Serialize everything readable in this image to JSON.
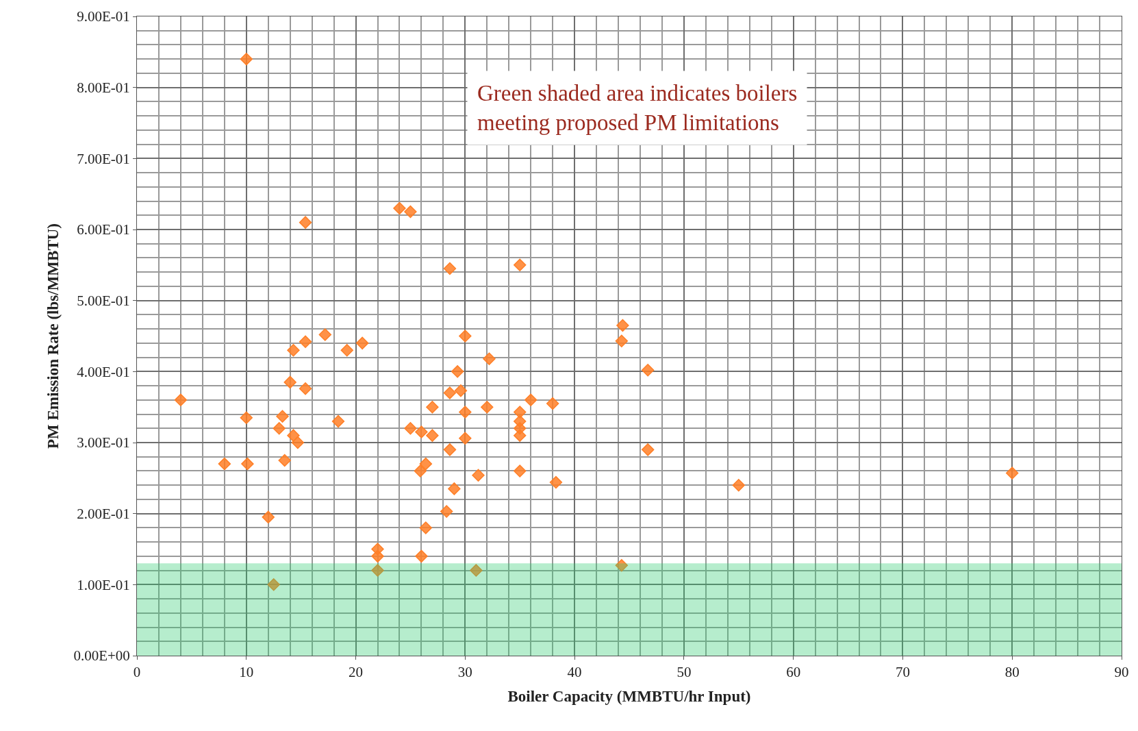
{
  "chart_data": {
    "type": "scatter",
    "xlabel": "Boiler Capacity (MMBTU/hr Input)",
    "ylabel": "PM Emission Rate (lbs/MMBTU)",
    "annotations": [
      "Green shaded area indicates boilers meeting proposed PM limitations"
    ],
    "series": [
      {
        "color": "#ff7f27",
        "x": [
          10,
          15.4,
          24,
          25,
          28.6,
          35,
          4,
          8,
          10,
          10.1,
          12,
          12.5,
          13,
          13.3,
          13.5,
          14,
          14.3,
          14.3,
          14.7,
          15.4,
          15.4,
          17.2,
          18.4,
          19.2,
          20.6,
          22,
          22,
          22,
          25,
          26,
          25.9,
          26,
          26.4,
          26.4,
          27,
          27,
          28.3,
          28.6,
          28.6,
          29,
          29.3,
          29.6,
          30,
          30,
          30,
          31,
          31.2,
          32,
          32.2,
          35,
          35,
          35,
          35,
          35,
          36,
          38,
          38.3,
          44.3,
          44.4,
          44.3,
          46.7,
          46.7,
          55,
          80
        ],
        "values": [
          0.84,
          0.61,
          0.63,
          0.625,
          0.545,
          0.55,
          0.36,
          0.27,
          0.335,
          0.27,
          0.195,
          0.1,
          0.32,
          0.337,
          0.275,
          0.385,
          0.43,
          0.31,
          0.3,
          0.442,
          0.376,
          0.452,
          0.33,
          0.43,
          0.44,
          0.15,
          0.14,
          0.12,
          0.32,
          0.315,
          0.26,
          0.14,
          0.27,
          0.18,
          0.35,
          0.31,
          0.203,
          0.37,
          0.29,
          0.235,
          0.4,
          0.373,
          0.45,
          0.343,
          0.306,
          0.12,
          0.254,
          0.35,
          0.418,
          0.343,
          0.33,
          0.32,
          0.31,
          0.26,
          0.36,
          0.355,
          0.244,
          0.443,
          0.465,
          0.127,
          0.402,
          0.29,
          0.24,
          0.257
        ]
      }
    ],
    "marker": "diamond",
    "bands": [
      {
        "axis": "y",
        "from": 0,
        "to": 0.13,
        "color": "#2ecc71"
      }
    ],
    "xlim": [
      0,
      90
    ],
    "xticks": [
      0,
      10,
      20,
      30,
      40,
      50,
      60,
      70,
      80,
      90
    ],
    "ylim": [
      0,
      0.9
    ],
    "yticks": [
      {
        "value": 0,
        "label": "0.00E+00"
      },
      {
        "value": 0.1,
        "label": "1.00E-01"
      },
      {
        "value": 0.2,
        "label": "2.00E-01"
      },
      {
        "value": 0.3,
        "label": "3.00E-01"
      },
      {
        "value": 0.4,
        "label": "4.00E-01"
      },
      {
        "value": 0.5,
        "label": "5.00E-01"
      },
      {
        "value": 0.6,
        "label": "6.00E-01"
      },
      {
        "value": 0.7,
        "label": "7.00E-01"
      },
      {
        "value": 0.8,
        "label": "8.00E-01"
      },
      {
        "value": 0.9,
        "label": "9.00E-01"
      }
    ],
    "grid": true
  }
}
